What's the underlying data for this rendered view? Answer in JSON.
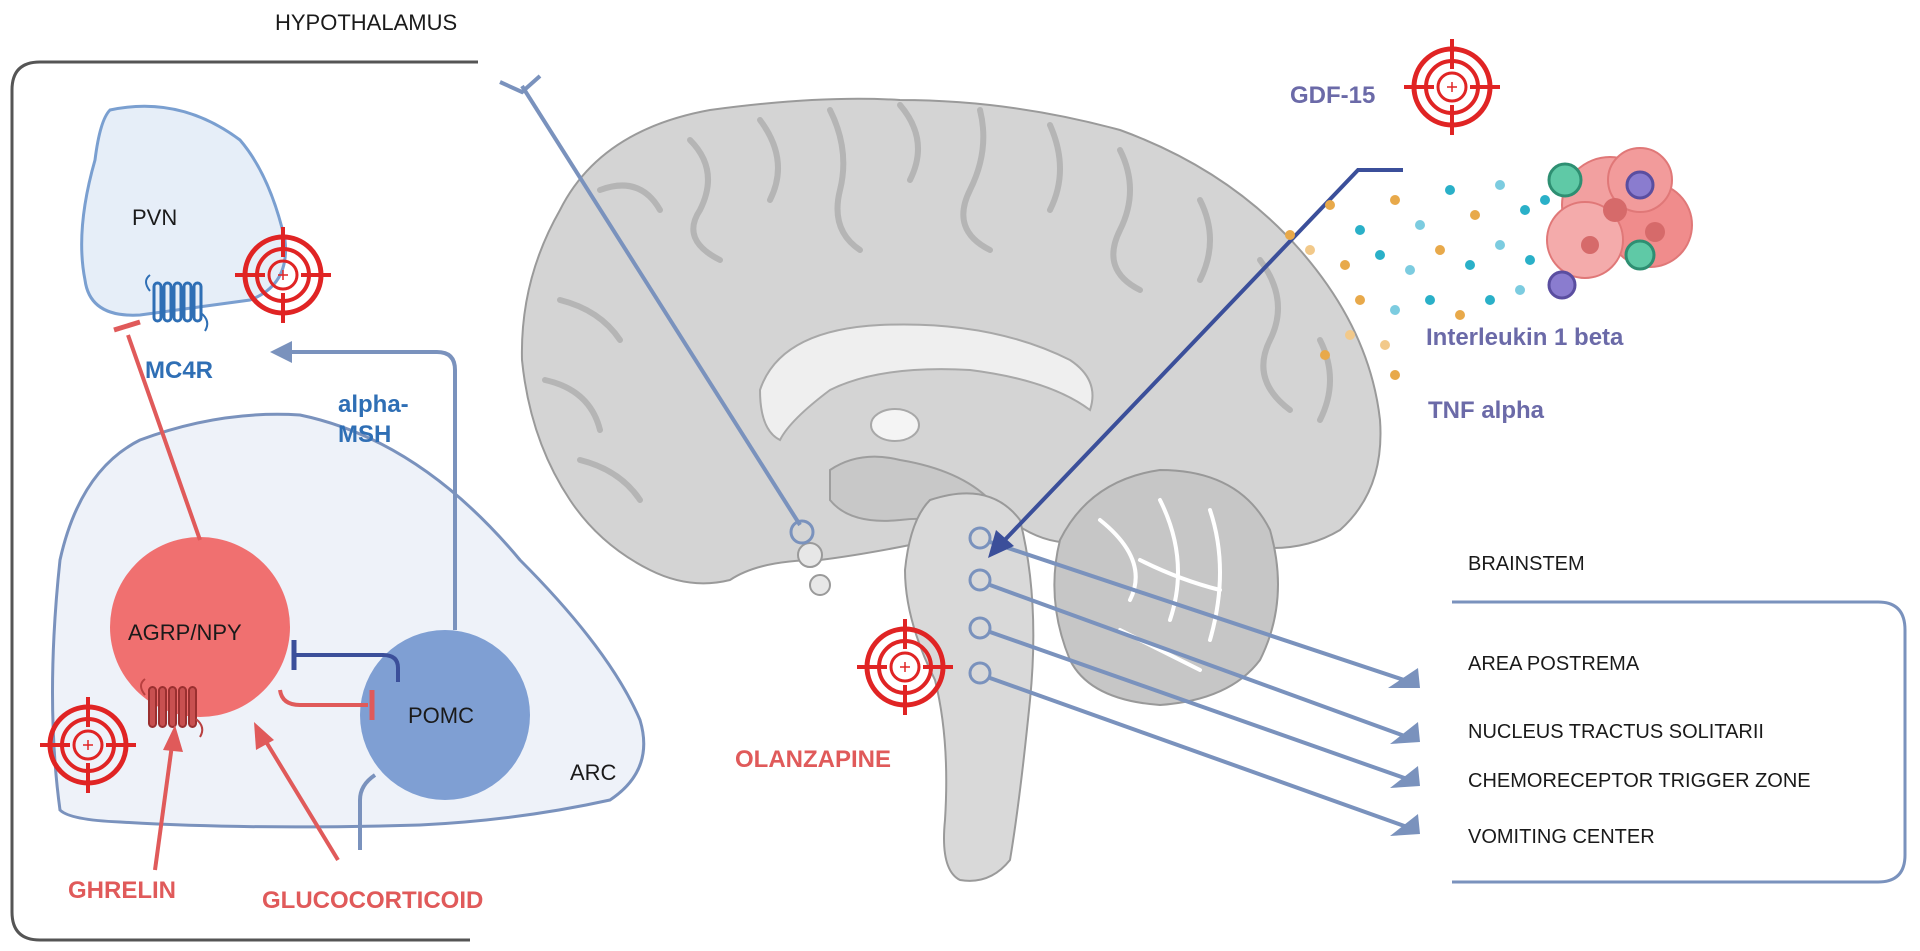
{
  "labels": {
    "hypothalamus": "HYPOTHALAMUS",
    "pvn": "PVN",
    "mc4r": "MC4R",
    "alpha_msh_line1": "alpha-",
    "alpha_msh_line2": "MSH",
    "agrp_npy": "AGRP/NPY",
    "pomc": "POMC",
    "arc": "ARC",
    "ghrelin": "GHRELIN",
    "glucocorticoid": "GLUCOCORTICOID",
    "olanzapine": "OLANZAPINE",
    "gdf15": "GDF-15",
    "interleukin": "Interleukin 1 beta",
    "tnf": "TNF alpha",
    "brainstem": "BRAINSTEM"
  },
  "brainstem_centers": [
    "AREA POSTREMA",
    "NUCLEUS TRACTUS SOLITARII",
    "CHEMORECEPTOR TRIGGER ZONE",
    "VOMITING CENTER"
  ],
  "colors": {
    "red": "#e05a5a",
    "blue": "#2f6fb5",
    "line_blue": "#7a92bd",
    "dark_blue": "#3b4f9a",
    "purple": "#6b6aa8",
    "pomc_fill": "#7f9fd3",
    "agrp_fill": "#f07070",
    "brain_gray": "#cfcfcf"
  },
  "icons": [
    "target-icon",
    "receptor-icon",
    "tumor-cell-icon"
  ]
}
